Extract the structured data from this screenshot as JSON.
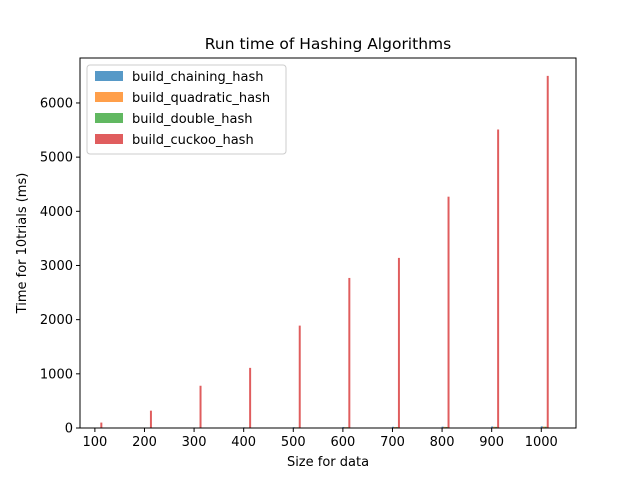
{
  "chart_data": {
    "type": "bar",
    "title": "Run time of Hashing Algorithms",
    "xlabel": "Size for data",
    "ylabel": "Time for 10trials (ms)",
    "x": [
      100,
      200,
      300,
      400,
      500,
      600,
      700,
      800,
      900,
      1000
    ],
    "xlim": [
      70,
      1070
    ],
    "ylim": [
      0,
      6830
    ],
    "xticks": [
      100,
      200,
      300,
      400,
      500,
      600,
      700,
      800,
      900,
      1000
    ],
    "yticks": [
      0,
      1000,
      2000,
      3000,
      4000,
      5000,
      6000
    ],
    "legend_position": "upper left",
    "grid": false,
    "bar_width_data": 4,
    "series": [
      {
        "name": "build_chaining_hash",
        "color": "#1f77b4",
        "values": [
          5,
          8,
          10,
          13,
          16,
          19,
          22,
          25,
          28,
          31
        ]
      },
      {
        "name": "build_quadratic_hash",
        "color": "#ff7f0e",
        "values": [
          4,
          6,
          9,
          11,
          13,
          16,
          18,
          21,
          23,
          26
        ]
      },
      {
        "name": "build_double_hash",
        "color": "#2ca02c",
        "values": [
          4,
          6,
          8,
          10,
          12,
          15,
          17,
          19,
          21,
          24
        ]
      },
      {
        "name": "build_cuckoo_hash",
        "color": "#d62728",
        "values": [
          100,
          320,
          780,
          1110,
          1890,
          2770,
          3140,
          4270,
          5510,
          6500
        ]
      }
    ]
  }
}
